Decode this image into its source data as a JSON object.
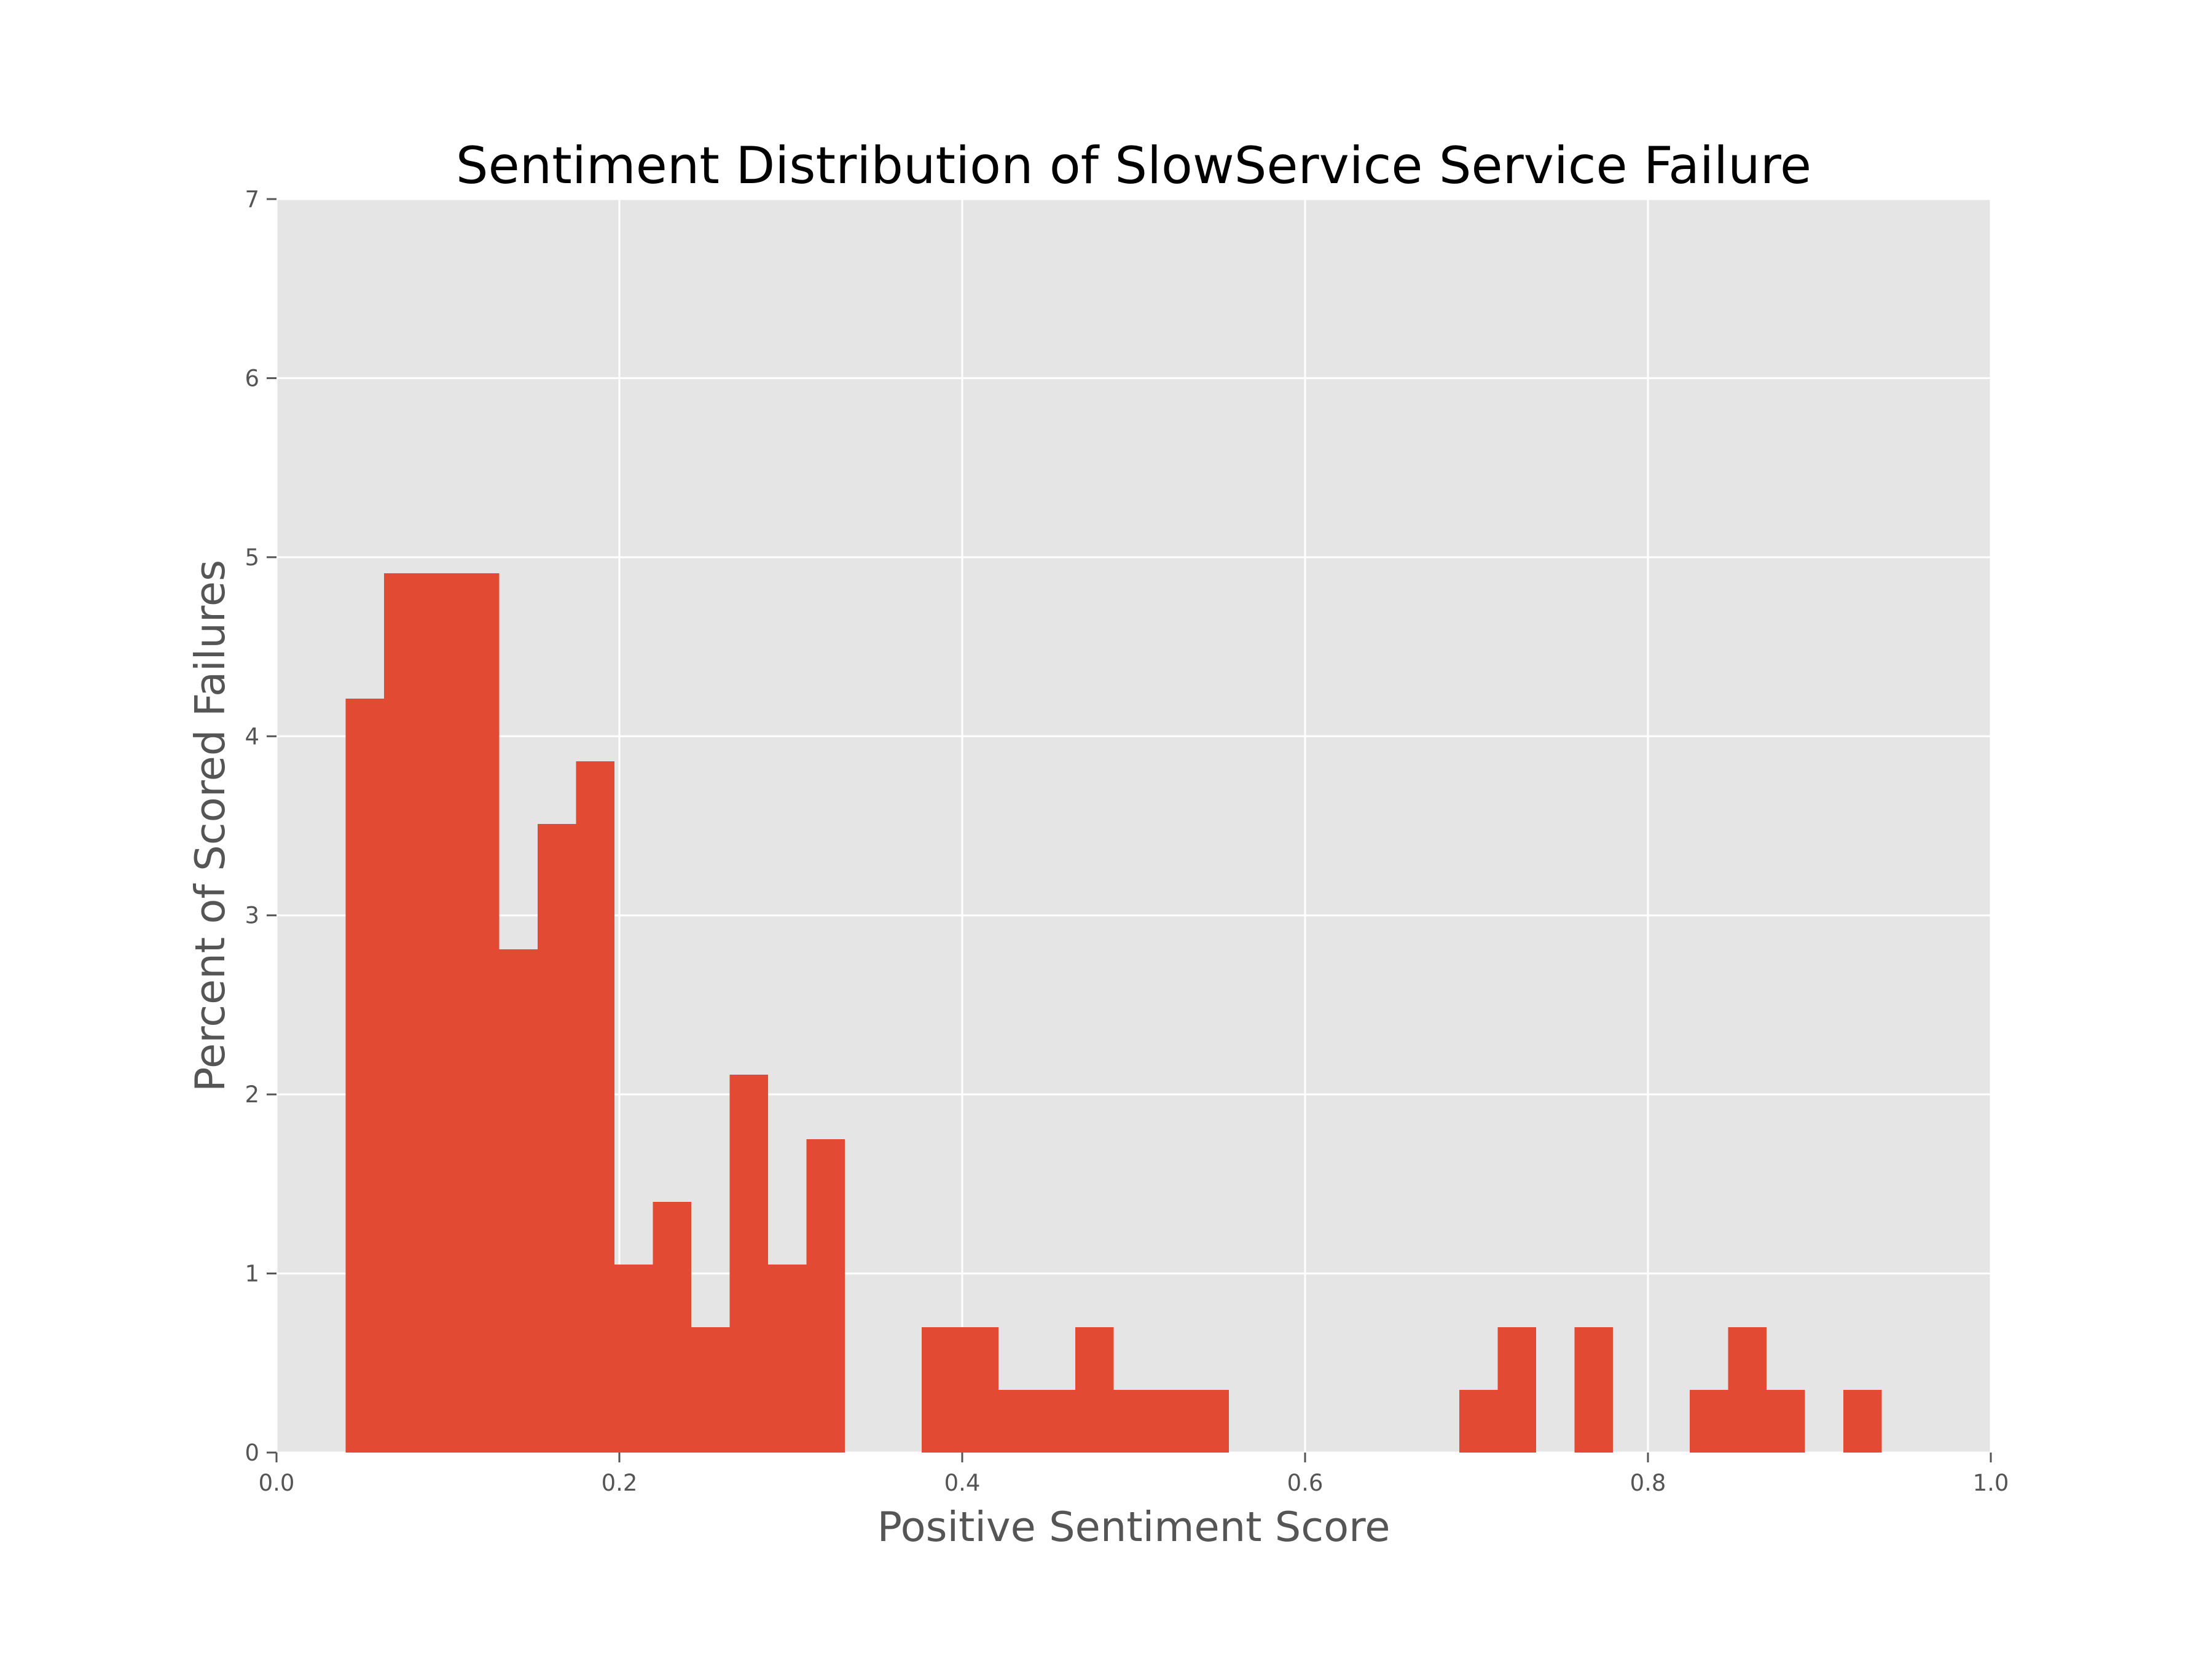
{
  "chart_data": {
    "type": "bar",
    "subtype": "histogram",
    "title": "Sentiment Distribution of SlowService Service Failure",
    "xlabel": "Positive Sentiment Score",
    "ylabel": "Percent of Scored Failures",
    "xlim": [
      0.0,
      1.0
    ],
    "ylim": [
      0,
      7
    ],
    "xticks": [
      "0.0",
      "0.2",
      "0.4",
      "0.6",
      "0.8",
      "1.0"
    ],
    "yticks": [
      "0",
      "1",
      "2",
      "3",
      "4",
      "5",
      "6",
      "7"
    ],
    "grid": true,
    "bin_width": 0.0224,
    "bins": [
      {
        "x0": 0.0403,
        "x1": 0.0627,
        "value": 4.21
      },
      {
        "x0": 0.0627,
        "x1": 0.0851,
        "value": 4.91
      },
      {
        "x0": 0.0851,
        "x1": 0.1075,
        "value": 4.91
      },
      {
        "x0": 0.1075,
        "x1": 0.1299,
        "value": 4.91
      },
      {
        "x0": 0.1299,
        "x1": 0.1523,
        "value": 2.81
      },
      {
        "x0": 0.1523,
        "x1": 0.1747,
        "value": 3.51
      },
      {
        "x0": 0.1747,
        "x1": 0.1971,
        "value": 3.86
      },
      {
        "x0": 0.1971,
        "x1": 0.2195,
        "value": 1.05
      },
      {
        "x0": 0.2195,
        "x1": 0.2419,
        "value": 1.4
      },
      {
        "x0": 0.2419,
        "x1": 0.2643,
        "value": 0.7
      },
      {
        "x0": 0.2643,
        "x1": 0.2867,
        "value": 2.11
      },
      {
        "x0": 0.2867,
        "x1": 0.3091,
        "value": 1.05
      },
      {
        "x0": 0.3091,
        "x1": 0.3315,
        "value": 1.75
      },
      {
        "x0": 0.3763,
        "x1": 0.3987,
        "value": 0.7
      },
      {
        "x0": 0.3987,
        "x1": 0.4211,
        "value": 0.7
      },
      {
        "x0": 0.4211,
        "x1": 0.4435,
        "value": 0.35
      },
      {
        "x0": 0.4435,
        "x1": 0.4659,
        "value": 0.35
      },
      {
        "x0": 0.4659,
        "x1": 0.4883,
        "value": 0.7
      },
      {
        "x0": 0.4883,
        "x1": 0.5107,
        "value": 0.35
      },
      {
        "x0": 0.5107,
        "x1": 0.5331,
        "value": 0.35
      },
      {
        "x0": 0.5331,
        "x1": 0.5555,
        "value": 0.35
      },
      {
        "x0": 0.6899,
        "x1": 0.7123,
        "value": 0.35
      },
      {
        "x0": 0.7123,
        "x1": 0.7347,
        "value": 0.7
      },
      {
        "x0": 0.7571,
        "x1": 0.7795,
        "value": 0.7
      },
      {
        "x0": 0.8243,
        "x1": 0.8467,
        "value": 0.35
      },
      {
        "x0": 0.8467,
        "x1": 0.8691,
        "value": 0.7
      },
      {
        "x0": 0.8691,
        "x1": 0.8915,
        "value": 0.35
      },
      {
        "x0": 0.9139,
        "x1": 0.9363,
        "value": 0.35
      }
    ]
  },
  "colors": {
    "bar": "#e24a33",
    "plot_background": "#e5e5e5",
    "grid": "#ffffff",
    "tick_text": "#555555",
    "title_text": "#000000"
  }
}
